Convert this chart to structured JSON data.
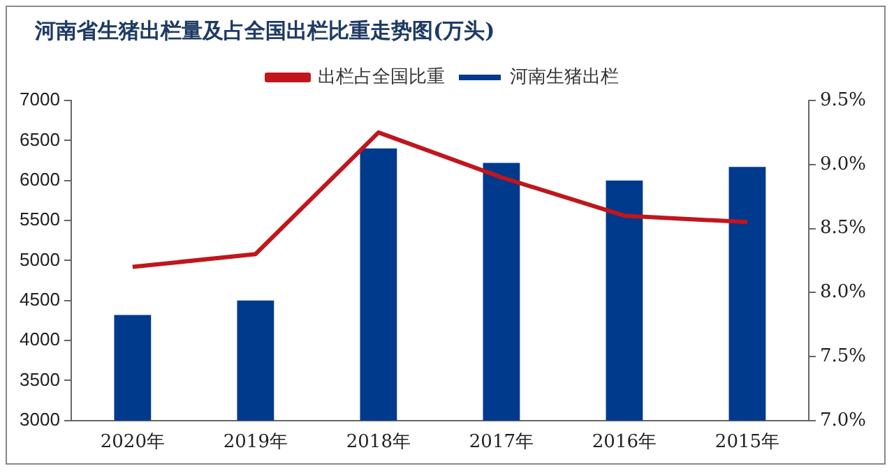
{
  "chart_data": {
    "type": "bar",
    "title": "河南省生猪出栏量及占全国出栏比重走势图(万头)",
    "categories": [
      "2020年",
      "2019年",
      "2018年",
      "2017年",
      "2016年",
      "2015年"
    ],
    "series": [
      {
        "name": "河南生猪出栏",
        "color": "#003a8c",
        "values": [
          4320,
          4500,
          6400,
          6220,
          6000,
          6170
        ]
      },
      {
        "name": "出栏占全国比重",
        "type": "line",
        "axis": "y2",
        "color": "#c0161c",
        "marker": "none",
        "values": [
          8.2,
          8.3,
          9.25,
          8.9,
          8.6,
          8.55
        ]
      }
    ],
    "ylim": [
      3000,
      7000
    ],
    "yticks": [
      3000,
      3500,
      4000,
      4500,
      5000,
      5500,
      6000,
      6500,
      7000
    ],
    "y2lim": [
      7.0,
      9.5
    ],
    "y2ticks": [
      {
        "value": 7.0,
        "label": "7.0%"
      },
      {
        "value": 7.5,
        "label": "7.5%"
      },
      {
        "value": 8.0,
        "label": "8.0%"
      },
      {
        "value": 8.5,
        "label": "8.5%"
      },
      {
        "value": 9.0,
        "label": "9.0%"
      },
      {
        "value": 9.5,
        "label": "9.5%"
      }
    ],
    "grid": false,
    "legend": "top"
  }
}
